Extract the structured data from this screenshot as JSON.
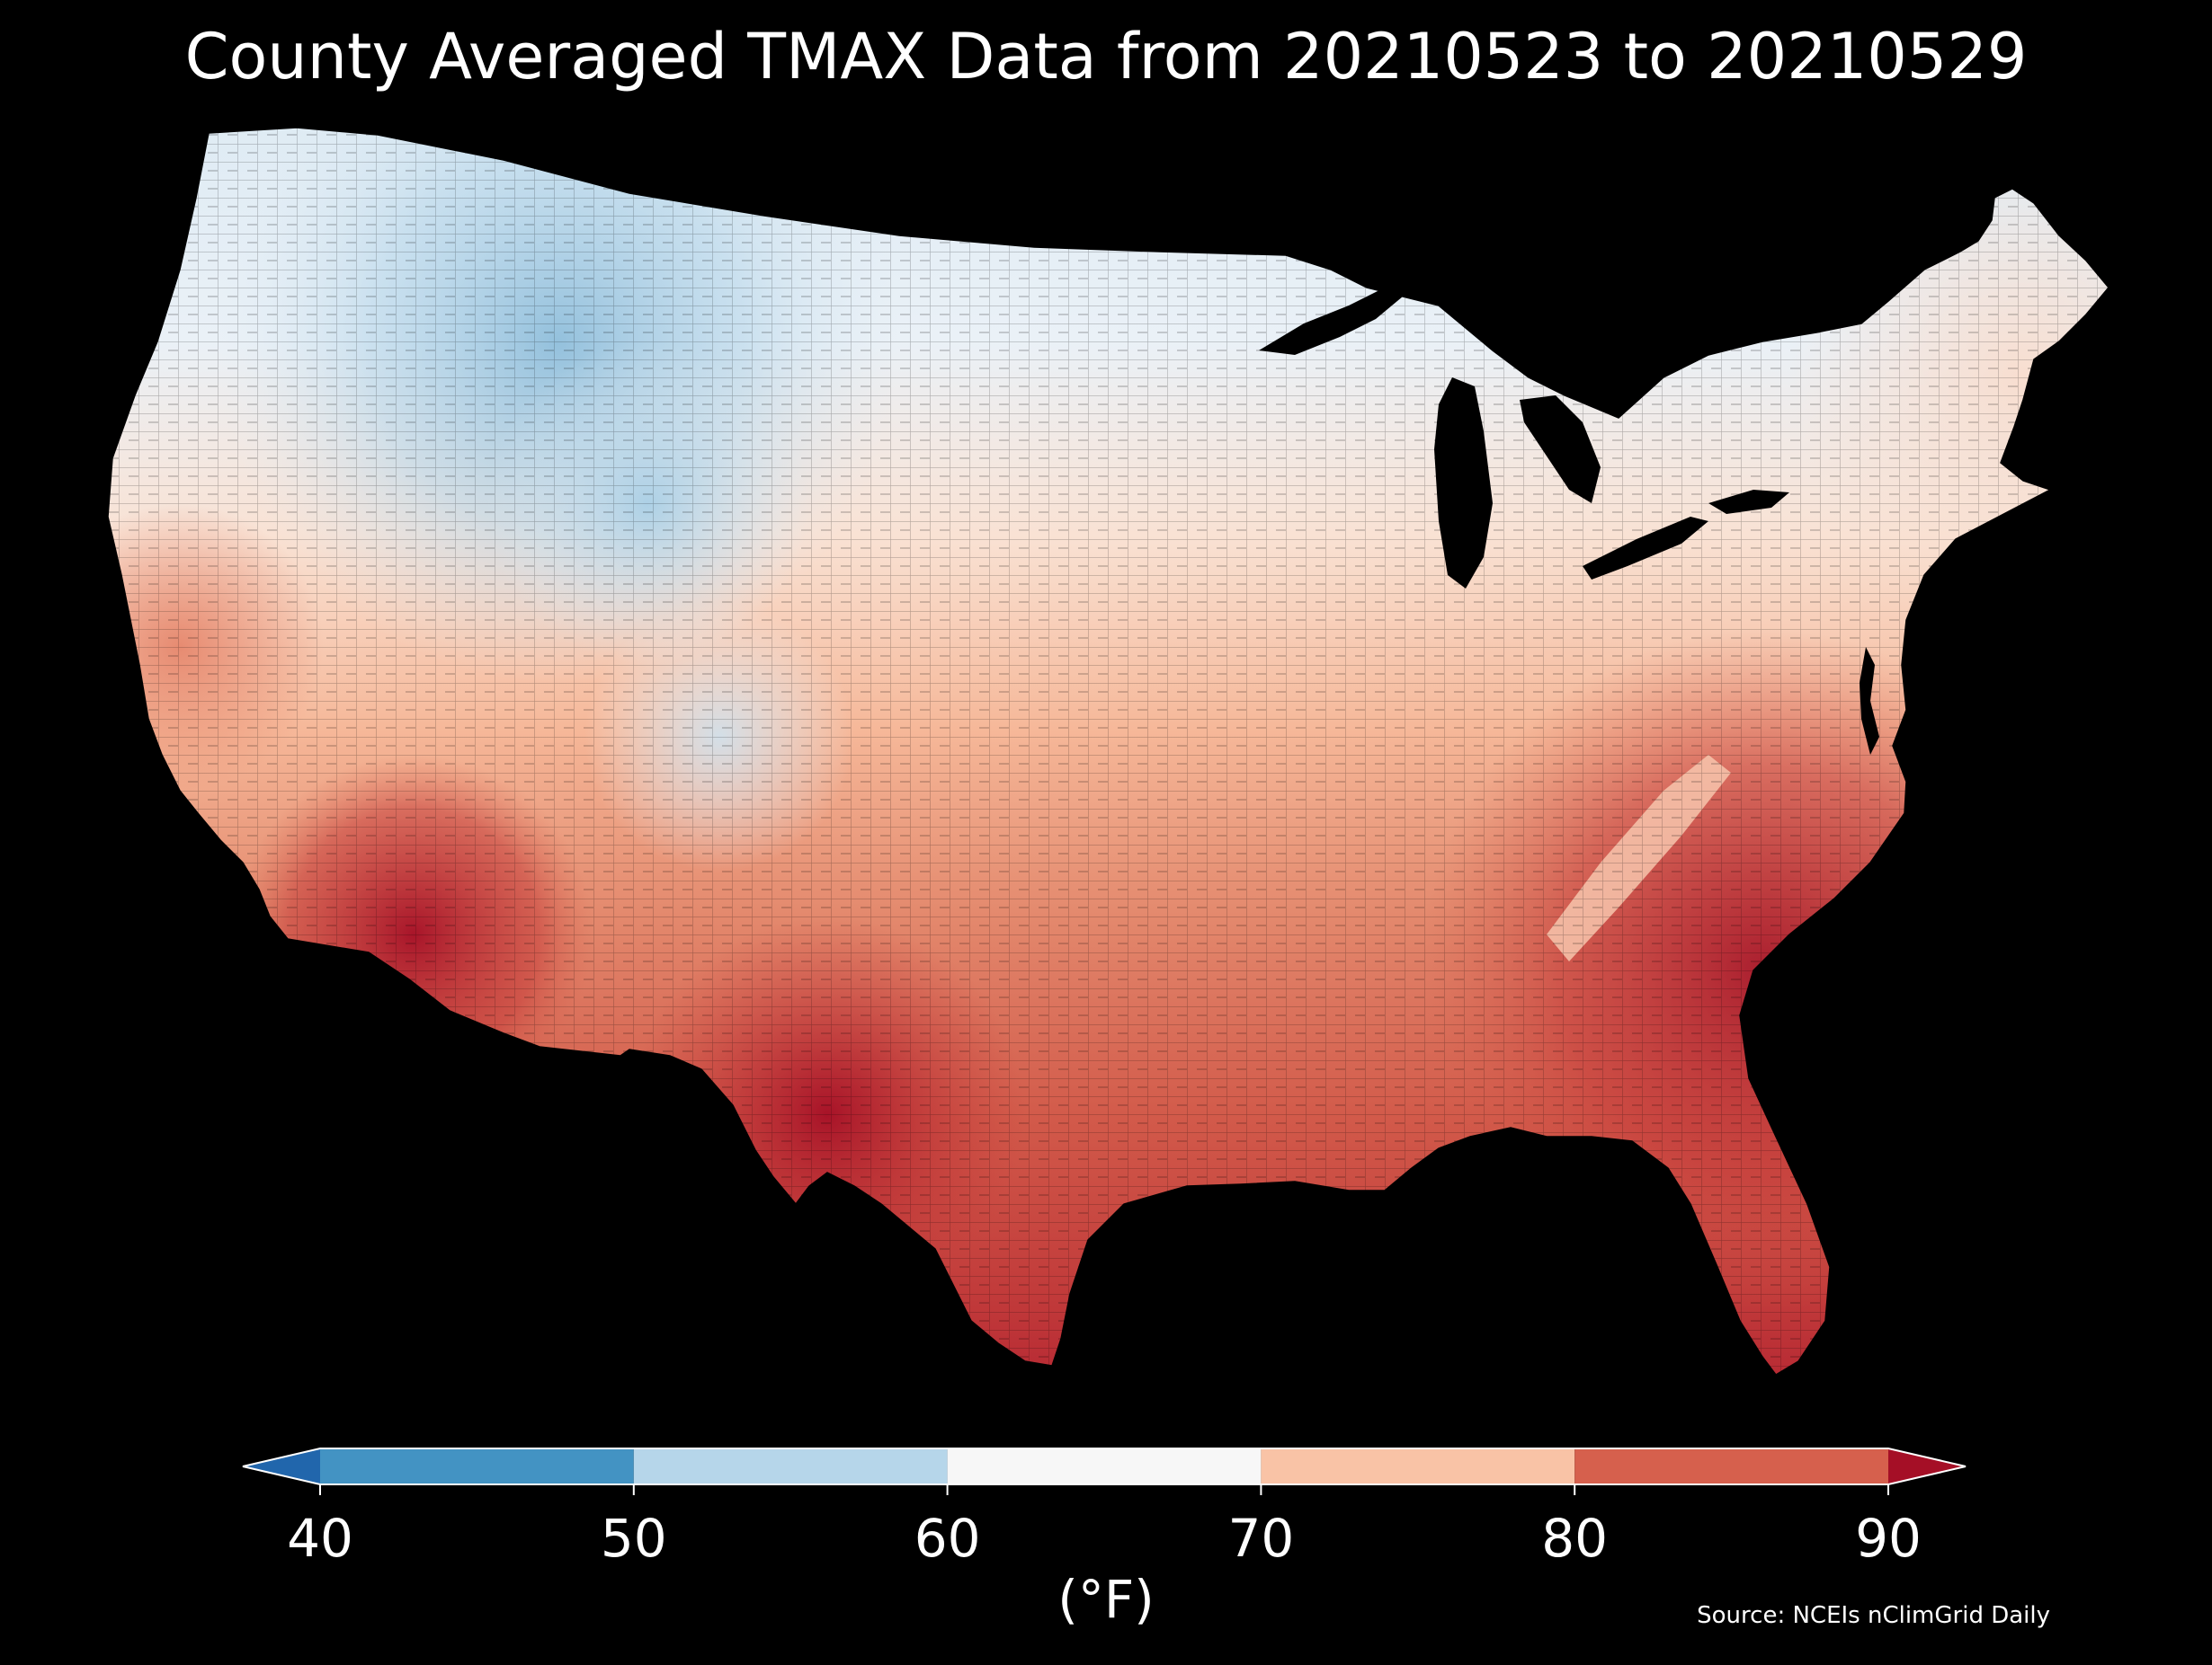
{
  "title": "County Averaged TMAX Data from 20210523 to 20210529",
  "source": "Source: NCEIs nClimGrid Daily",
  "colorbar": {
    "label": "(°F)",
    "ticks": [
      "40",
      "50",
      "60",
      "70",
      "80",
      "90"
    ],
    "range": [
      40,
      90
    ],
    "extend": "both",
    "bins": [
      {
        "from": 40,
        "to": 50,
        "color": "#4393c3"
      },
      {
        "from": 50,
        "to": 60,
        "color": "#b6d6ea"
      },
      {
        "from": 60,
        "to": 70,
        "color": "#f7f7f7"
      },
      {
        "from": 70,
        "to": 80,
        "color": "#f9c3a6"
      },
      {
        "from": 80,
        "to": 90,
        "color": "#d6604d"
      }
    ],
    "under_color": "#2166ac",
    "over_color": "#a50f26"
  },
  "map": {
    "region": "Contiguous United States",
    "unit": "county",
    "variable": "TMAX"
  }
}
